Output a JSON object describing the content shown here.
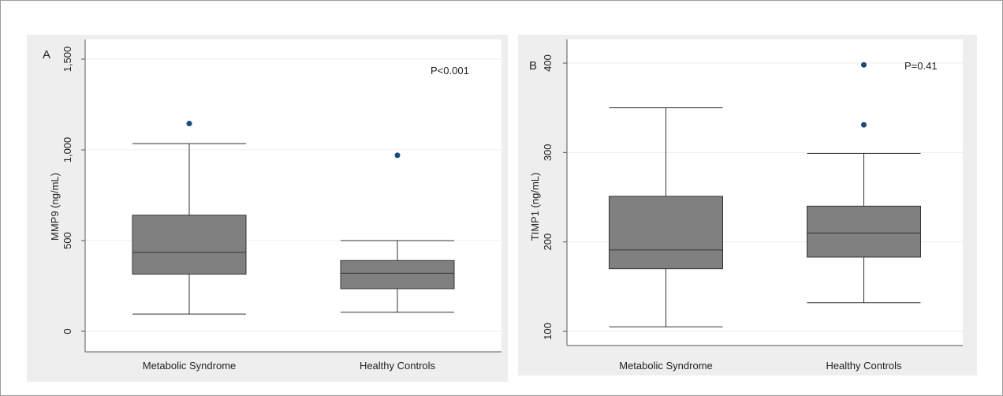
{
  "chart_data": [
    {
      "type": "box",
      "panel_letter": "A",
      "ylabel": "MMP9 (ng/mL)",
      "annotation": "P<0.001",
      "ylim": [
        0,
        1500
      ],
      "yticks": [
        0,
        500,
        1000,
        1500
      ],
      "ytick_labels": [
        "0",
        "500",
        "1,000",
        "1,500"
      ],
      "categories": [
        "Metabolic Syndrome",
        "Healthy Controls"
      ],
      "boxes": [
        {
          "whisker_low": 95,
          "q1": 315,
          "median": 435,
          "q3": 640,
          "whisker_high": 1035,
          "outliers": [
            1145
          ]
        },
        {
          "whisker_low": 105,
          "q1": 235,
          "median": 320,
          "q3": 390,
          "whisker_high": 500,
          "outliers": [
            970
          ]
        }
      ],
      "grid": true
    },
    {
      "type": "box",
      "panel_letter": "B",
      "ylabel": "TIMP1 (ng/mL)",
      "annotation": "P=0.41",
      "ylim": [
        100,
        400
      ],
      "yticks": [
        100,
        200,
        300,
        400
      ],
      "ytick_labels": [
        "100",
        "200",
        "300",
        "400"
      ],
      "categories": [
        "Metabolic Syndrome",
        "Healthy Controls"
      ],
      "boxes": [
        {
          "whisker_low": 105,
          "q1": 170,
          "median": 191,
          "q3": 251,
          "whisker_high": 350,
          "outliers": []
        },
        {
          "whisker_low": 132,
          "q1": 183,
          "median": 210,
          "q3": 240,
          "whisker_high": 299,
          "outliers": [
            331,
            398
          ]
        }
      ],
      "grid": true
    }
  ],
  "colors": {
    "box_fill": "#808080",
    "outline": "#333333",
    "outlier": "#1a4a7a",
    "panel_background": "#eeeeee"
  }
}
